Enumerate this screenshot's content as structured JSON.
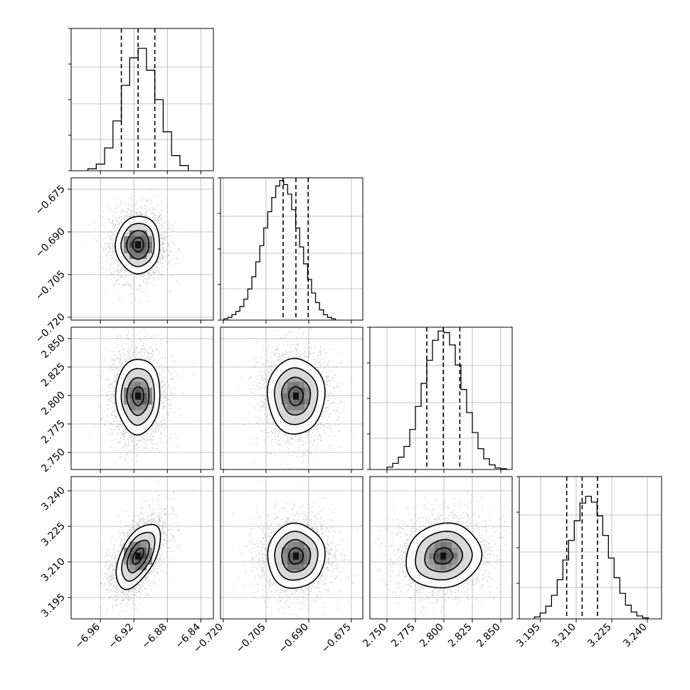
{
  "chart_data": {
    "type": "corner",
    "grid": true,
    "parameters": [
      {
        "range": [
          -6.995,
          -6.825
        ],
        "ticks": [
          -6.96,
          -6.92,
          -6.88,
          -6.84
        ],
        "tick_labels": [
          "−6.96",
          "−6.92",
          "−6.88",
          "−6.84"
        ],
        "mean": -6.915,
        "std": 0.0118,
        "quantiles": [
          -6.935,
          -6.915,
          -6.895
        ],
        "histogram": {
          "edges": [
            -6.975,
            -6.965,
            -6.955,
            -6.945,
            -6.935,
            -6.925,
            -6.915,
            -6.905,
            -6.895,
            -6.885,
            -6.875,
            -6.865,
            -6.855
          ],
          "counts": [
            4,
            14,
            48,
            105,
            180,
            238,
            258,
            212,
            150,
            82,
            32,
            11
          ],
          "ylim": [
            0,
            300
          ]
        }
      },
      {
        "range": [
          -0.721,
          -0.671
        ],
        "ticks": [
          -0.72,
          -0.705,
          -0.69,
          -0.675
        ],
        "tick_labels": [
          "−0.720",
          "−0.705",
          "−0.690",
          "−0.675"
        ],
        "mean": -0.6945,
        "std": 0.0045,
        "quantiles": [
          -0.699,
          -0.6945,
          -0.6902
        ],
        "histogram": {
          "edges": [
            -0.7198,
            -0.7184,
            -0.717,
            -0.7156,
            -0.7142,
            -0.7128,
            -0.7114,
            -0.71,
            -0.7086,
            -0.7072,
            -0.7058,
            -0.7044,
            -0.703,
            -0.7016,
            -0.7002,
            -0.6988,
            -0.6974,
            -0.696,
            -0.6946,
            -0.6932,
            -0.6918,
            -0.6904,
            -0.689,
            -0.6876,
            -0.6862,
            -0.6848,
            -0.6834,
            -0.682,
            -0.6806
          ],
          "counts": [
            2,
            4,
            8,
            13,
            20,
            31,
            46,
            64,
            86,
            110,
            136,
            160,
            181,
            198,
            206,
            200,
            186,
            163,
            136,
            108,
            83,
            60,
            40,
            26,
            15,
            8,
            4,
            2
          ],
          "ylim": [
            0,
            210
          ]
        }
      },
      {
        "range": [
          2.735,
          2.86
        ],
        "ticks": [
          2.75,
          2.775,
          2.8,
          2.825,
          2.85
        ],
        "tick_labels": [
          "2.750",
          "2.775",
          "2.800",
          "2.825",
          "2.850"
        ],
        "mean": 2.7995,
        "std": 0.0148,
        "quantiles": [
          2.785,
          2.7995,
          2.814
        ],
        "histogram": {
          "edges": [
            2.75,
            2.755,
            2.76,
            2.765,
            2.77,
            2.775,
            2.78,
            2.785,
            2.79,
            2.795,
            2.8,
            2.805,
            2.81,
            2.815,
            2.82,
            2.825,
            2.83,
            2.835,
            2.84,
            2.845,
            2.85,
            2.855
          ],
          "counts": [
            3,
            8,
            16,
            30,
            52,
            82,
            112,
            142,
            168,
            180,
            178,
            162,
            136,
            104,
            74,
            48,
            27,
            14,
            6,
            2,
            1
          ],
          "ylim": [
            0,
            185
          ]
        }
      },
      {
        "range": [
          3.186,
          3.246
        ],
        "ticks": [
          3.195,
          3.21,
          3.225,
          3.24
        ],
        "tick_labels": [
          "3.195",
          "3.210",
          "3.225",
          "3.240"
        ],
        "mean": 3.2125,
        "std": 0.0061,
        "quantiles": [
          3.206,
          3.2125,
          3.219
        ],
        "histogram": {
          "edges": [
            3.1924,
            3.1948,
            3.1972,
            3.1996,
            3.202,
            3.2044,
            3.2068,
            3.2092,
            3.2116,
            3.214,
            3.2164,
            3.2188,
            3.2212,
            3.2236,
            3.226,
            3.2284,
            3.2308,
            3.2332,
            3.2356,
            3.238,
            3.2404
          ],
          "counts": [
            4,
            12,
            26,
            48,
            80,
            120,
            160,
            200,
            236,
            250,
            238,
            210,
            170,
            124,
            84,
            52,
            28,
            14,
            6,
            2
          ],
          "ylim": [
            0,
            290
          ]
        }
      }
    ],
    "correlations": [
      [
        1.0,
        0.02,
        0.02,
        0.55
      ],
      [
        0.02,
        1.0,
        0.0,
        0.02
      ],
      [
        0.02,
        0.0,
        1.0,
        0.1
      ],
      [
        0.55,
        0.02,
        0.1,
        1.0
      ]
    ],
    "contour_levels_sigma": [
      0.5,
      1.0,
      1.5,
      2.0
    ],
    "contour_fill_colors": [
      "#ffffff",
      "#d9d9d9",
      "#a6a6a6",
      "#6e6e6e",
      "#3a3a3a"
    ],
    "scatter_color": "#9e9e9e",
    "line_color": "#000000",
    "grid_color": "#b0b0b0"
  }
}
